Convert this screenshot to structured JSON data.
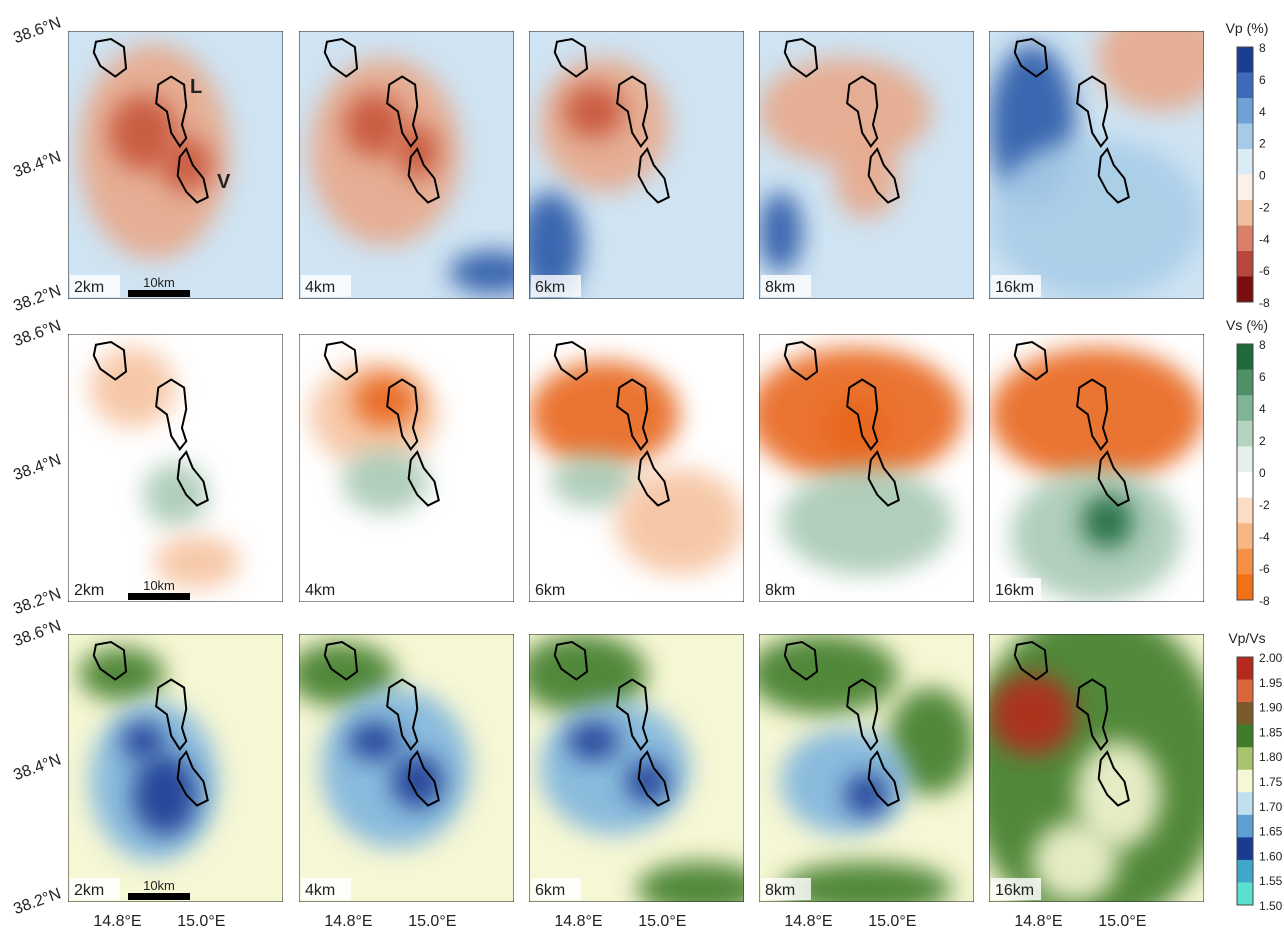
{
  "rows": [
    {
      "depths": [
        "2km",
        "4km",
        "6km",
        "8km",
        "16km"
      ],
      "colorbar": {
        "title": "Vp (%)",
        "ticks": [
          "8",
          "6",
          "4",
          "2",
          "0",
          "-2",
          "-4",
          "-6",
          "-8"
        ]
      }
    },
    {
      "depths": [
        "2km",
        "4km",
        "6km",
        "8km",
        "16km"
      ],
      "colorbar": {
        "title": "Vs (%)",
        "ticks": [
          "8",
          "6",
          "4",
          "2",
          "0",
          "-2",
          "-4",
          "-6",
          "-8"
        ]
      }
    },
    {
      "depths": [
        "2km",
        "4km",
        "6km",
        "8km",
        "16km"
      ],
      "colorbar": {
        "title": "Vp/Vs",
        "ticks": [
          "2.00",
          "1.95",
          "1.90",
          "1.85",
          "1.80",
          "1.75",
          "1.70",
          "1.65",
          "1.60",
          "1.55",
          "1.50"
        ]
      }
    }
  ],
  "lat_labels": [
    "38.6°N",
    "38.4°N",
    "38.2°N"
  ],
  "lon_labels": [
    "14.8°E",
    "15.0°E"
  ],
  "scale_bar": "10km",
  "island_labels": [
    "L",
    "V"
  ]
}
